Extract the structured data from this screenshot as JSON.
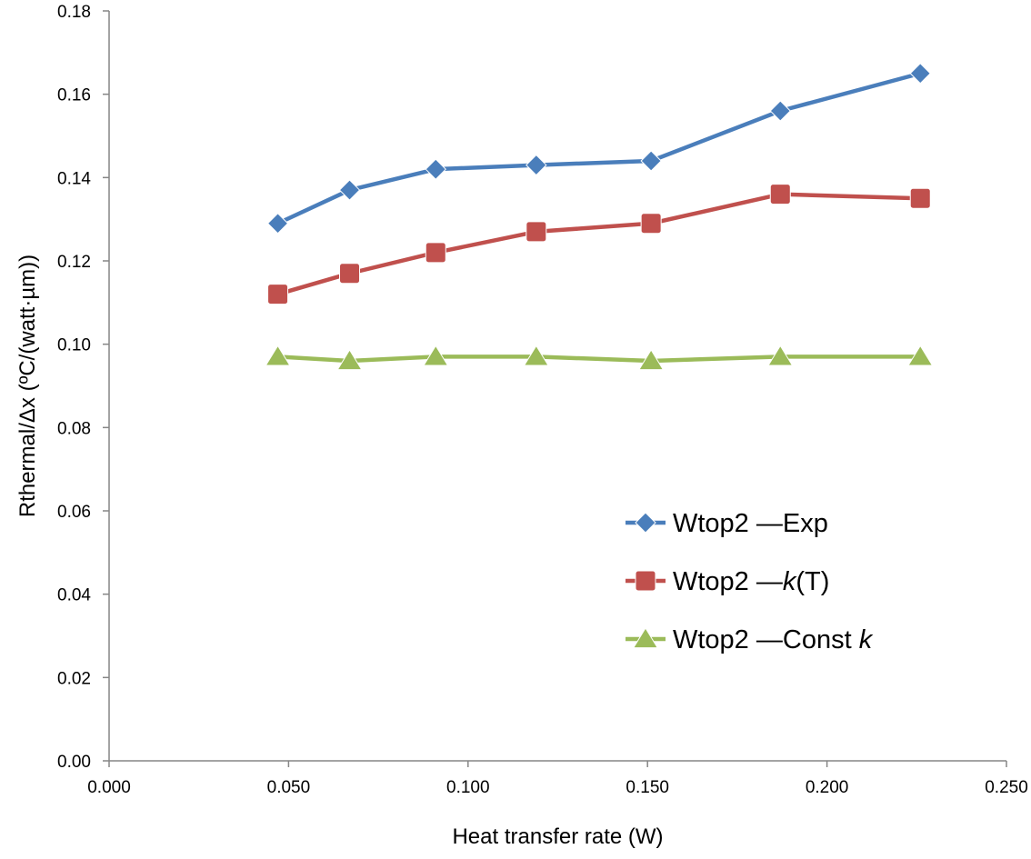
{
  "chart_data": {
    "type": "line",
    "title": "",
    "xlabel": "Heat transfer rate (W)",
    "ylabel": "Rthermal/Δx  (ºC/(watt·µm))",
    "xlim": [
      0.0,
      0.25
    ],
    "ylim": [
      0.0,
      0.18
    ],
    "x_ticks": [
      0.0,
      0.05,
      0.1,
      0.15,
      0.2,
      0.25
    ],
    "x_tick_labels": [
      "0.000",
      "0.050",
      "0.100",
      "0.150",
      "0.200",
      "0.250"
    ],
    "y_ticks": [
      0.0,
      0.02,
      0.04,
      0.06,
      0.08,
      0.1,
      0.12,
      0.14,
      0.16,
      0.18
    ],
    "y_tick_labels": [
      "0.00",
      "0.02",
      "0.04",
      "0.06",
      "0.08",
      "0.10",
      "0.12",
      "0.14",
      "0.16",
      "0.18"
    ],
    "grid": false,
    "legend_position": "lower-right",
    "series": [
      {
        "name": "Wtop2—Exp",
        "legend_main": "Wtop2 —Exp",
        "legend_italic": "",
        "legend_tail": "",
        "color": "#4a7ebb",
        "marker": "diamond",
        "x": [
          0.047,
          0.067,
          0.091,
          0.119,
          0.151,
          0.187,
          0.226
        ],
        "y": [
          0.129,
          0.137,
          0.142,
          0.143,
          0.144,
          0.156,
          0.165
        ]
      },
      {
        "name": "Wtop2—k(T)",
        "legend_main": "Wtop2 —",
        "legend_italic": "k",
        "legend_tail": "(T)",
        "color": "#c0504d",
        "marker": "square",
        "x": [
          0.047,
          0.067,
          0.091,
          0.119,
          0.151,
          0.187,
          0.226
        ],
        "y": [
          0.112,
          0.117,
          0.122,
          0.127,
          0.129,
          0.136,
          0.135
        ]
      },
      {
        "name": "Wtop2—Const k",
        "legend_main": "Wtop2 —Const ",
        "legend_italic": "k",
        "legend_tail": "",
        "color": "#9bbb59",
        "marker": "triangle",
        "x": [
          0.047,
          0.067,
          0.091,
          0.119,
          0.151,
          0.187,
          0.226
        ],
        "y": [
          0.097,
          0.096,
          0.097,
          0.097,
          0.096,
          0.097,
          0.097
        ]
      }
    ]
  }
}
